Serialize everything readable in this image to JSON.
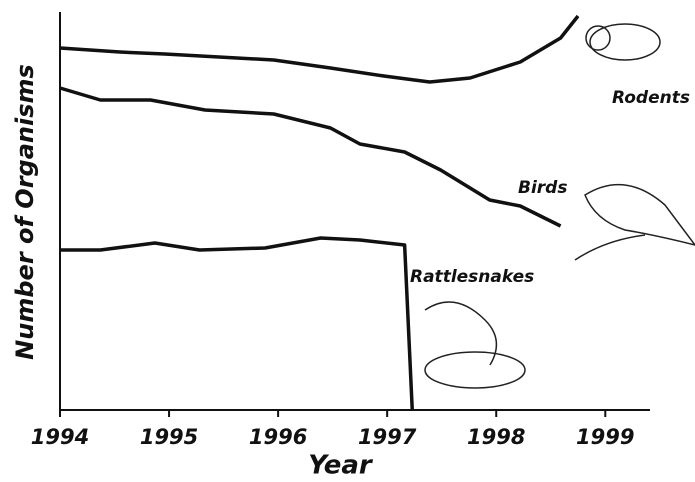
{
  "chart_data": {
    "type": "line",
    "xlabel": "Year",
    "ylabel": "Number of Organisms",
    "xlim": [
      1994,
      1999.41
    ],
    "xticks": [
      1994,
      1995,
      1996,
      1997,
      1998,
      1999
    ],
    "ylim": [
      0,
      100
    ],
    "series": [
      {
        "name": "Rodents",
        "color": "#111111",
        "x": [
          1994,
          1994.55,
          1994.96,
          1995.96,
          1996.48,
          1996.97,
          1997.39,
          1997.76,
          1998.22,
          1998.59,
          1998.75
        ],
        "values": [
          90.5,
          89.5,
          89,
          87.5,
          85.5,
          83.5,
          82,
          83,
          87,
          93,
          98.5
        ]
      },
      {
        "name": "Birds",
        "color": "#111111",
        "x": [
          1994,
          1994.37,
          1994.83,
          1995.33,
          1995.96,
          1996.48,
          1996.75,
          1997.16,
          1997.49,
          1997.94,
          1998.22,
          1998.59
        ],
        "values": [
          80.5,
          77.5,
          77.5,
          75,
          74,
          70.5,
          66.5,
          64.5,
          60,
          52.5,
          51,
          46
        ]
      },
      {
        "name": "Rattlesnakes",
        "color": "#111111",
        "x": [
          1994,
          1994.37,
          1994.87,
          1995.28,
          1995.88,
          1996.39,
          1996.75,
          1997.16,
          1997.23
        ],
        "values": [
          40,
          40,
          41.75,
          40,
          40.5,
          43,
          42.5,
          41.25,
          0
        ]
      }
    ]
  }
}
